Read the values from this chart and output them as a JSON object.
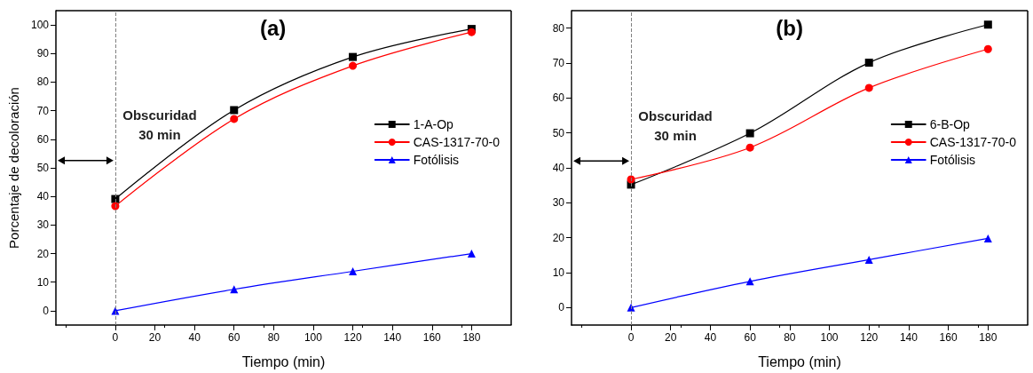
{
  "chart_data": [
    {
      "type": "line",
      "title": "(a)",
      "xlabel": "Tiempo (min)",
      "ylabel": "Porcentaje de decoloración",
      "x": [
        0,
        60,
        120,
        180
      ],
      "series": [
        {
          "name": "1-A-Op",
          "color": "#000000",
          "marker": "square",
          "values": [
            39.1,
            70.2,
            88.8,
            98.6
          ]
        },
        {
          "name": "CAS-1317-70-0",
          "color": "#ff0000",
          "marker": "circle",
          "values": [
            36.6,
            67.1,
            85.7,
            97.5
          ]
        },
        {
          "name": "Fotólisis",
          "color": "#0000ff",
          "marker": "triangle",
          "values": [
            0,
            7.5,
            13.8,
            20
          ]
        }
      ],
      "xlim": [
        -30,
        200
      ],
      "xticks": [
        0,
        20,
        40,
        60,
        80,
        100,
        120,
        140,
        160,
        180
      ],
      "ylim": [
        -5,
        105
      ],
      "yticks": [
        0,
        10,
        20,
        30,
        40,
        50,
        60,
        70,
        80,
        90,
        100
      ],
      "grid": false,
      "legend": "right",
      "ref_lines": [
        {
          "axis": "x",
          "value": 0,
          "color": "#808080",
          "line_style": "dashed"
        }
      ],
      "annotations": [
        {
          "text": "Obscuridad\n30 min",
          "x": 0,
          "y": 52.6
        }
      ]
    },
    {
      "type": "line",
      "title": "(b)",
      "xlabel": "Tiempo (min)",
      "x": [
        0,
        60,
        120,
        180
      ],
      "series": [
        {
          "name": "6-B-Op",
          "color": "#000000",
          "marker": "square",
          "values": [
            35.2,
            49.9,
            70.1,
            81
          ]
        },
        {
          "name": "CAS-1317-70-0",
          "color": "#ff0000",
          "marker": "circle",
          "values": [
            36.7,
            45.8,
            62.9,
            74
          ]
        },
        {
          "name": "Fotólisis",
          "color": "#0000ff",
          "marker": "triangle",
          "values": [
            0,
            7.5,
            13.7,
            19.8
          ]
        }
      ],
      "xlim": [
        -30,
        200
      ],
      "xticks": [
        0,
        20,
        40,
        60,
        80,
        100,
        120,
        140,
        160,
        180
      ],
      "ylim": [
        -5,
        85
      ],
      "yticks": [
        0,
        10,
        20,
        30,
        40,
        50,
        60,
        70,
        80
      ],
      "grid": false,
      "legend": "right",
      "ref_lines": [
        {
          "axis": "x",
          "value": 0,
          "color": "#808080",
          "line_style": "dashed"
        }
      ],
      "annotations": [
        {
          "text": "Obscuridad\n30 min",
          "x": 0,
          "y": 42
        }
      ]
    }
  ]
}
